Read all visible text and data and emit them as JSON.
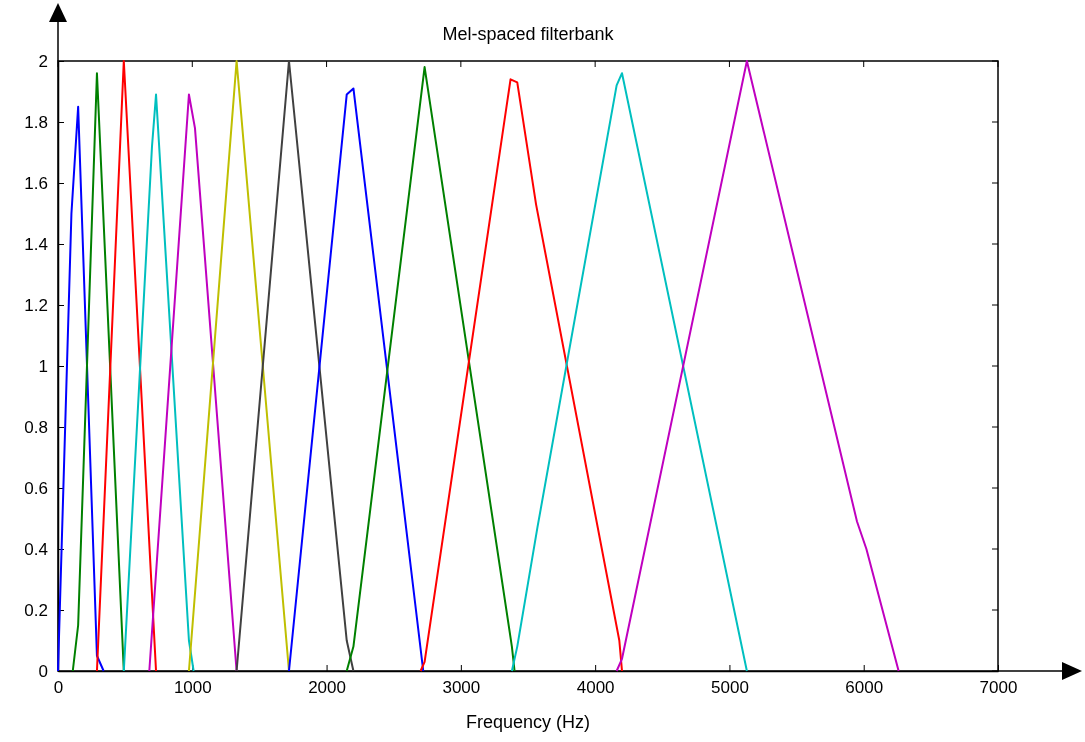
{
  "chart_data": {
    "type": "line",
    "title": "Mel-spaced filterbank",
    "xlabel": "Frequency (Hz)",
    "xlim": [
      0,
      7000
    ],
    "xticks": [
      0,
      1000,
      2000,
      3000,
      4000,
      5000,
      6000,
      7000
    ],
    "ylim": [
      0,
      2
    ],
    "yticks": [
      0,
      0.2,
      0.4,
      0.6,
      0.8,
      1,
      1.2,
      1.4,
      1.6,
      1.8,
      2
    ],
    "marker": "none",
    "line_style": "solid",
    "series": [
      {
        "color": "#0000ff",
        "x": [
          0,
          100,
          150,
          290,
          340
        ],
        "values": [
          0,
          1.5,
          1.85,
          0.05,
          0
        ]
      },
      {
        "color": "#008000",
        "x": [
          110,
          150,
          290,
          490
        ],
        "values": [
          0,
          0.15,
          1.96,
          0
        ]
      },
      {
        "color": "#ff0000",
        "x": [
          290,
          490,
          730
        ],
        "values": [
          0,
          2,
          0
        ]
      },
      {
        "color": "#00bfbf",
        "x": [
          490,
          700,
          730,
          975,
          1010
        ],
        "values": [
          0,
          1.72,
          1.89,
          0.1,
          0
        ]
      },
      {
        "color": "#bf00bf",
        "x": [
          680,
          975,
          1020,
          1330
        ],
        "values": [
          0,
          1.89,
          1.78,
          0
        ]
      },
      {
        "color": "#bfbf00",
        "x": [
          975,
          1330,
          1720
        ],
        "values": [
          0,
          2,
          0
        ]
      },
      {
        "color": "#404040",
        "x": [
          1330,
          1720,
          2150,
          2200
        ],
        "values": [
          0,
          2,
          0.1,
          0
        ]
      },
      {
        "color": "#0000ff",
        "x": [
          1720,
          2150,
          2200,
          2720
        ],
        "values": [
          0,
          1.89,
          1.91,
          0
        ]
      },
      {
        "color": "#008000",
        "x": [
          2150,
          2200,
          2730,
          3380,
          3400
        ],
        "values": [
          0,
          0.08,
          1.98,
          0.08,
          0
        ]
      },
      {
        "color": "#ff0000",
        "x": [
          2700,
          2730,
          3370,
          3420,
          3560,
          4180,
          4200
        ],
        "values": [
          0,
          0.03,
          1.94,
          1.93,
          1.53,
          0.1,
          0
        ]
      },
      {
        "color": "#00bfbf",
        "x": [
          3380,
          3420,
          3570,
          4160,
          4200,
          5130
        ],
        "values": [
          0,
          0.08,
          0.47,
          1.92,
          1.96,
          0
        ]
      },
      {
        "color": "#bf00bf",
        "x": [
          4160,
          4200,
          5130,
          5950,
          6020,
          6260
        ],
        "values": [
          0,
          0.04,
          2,
          0.49,
          0.4,
          0
        ]
      }
    ]
  }
}
